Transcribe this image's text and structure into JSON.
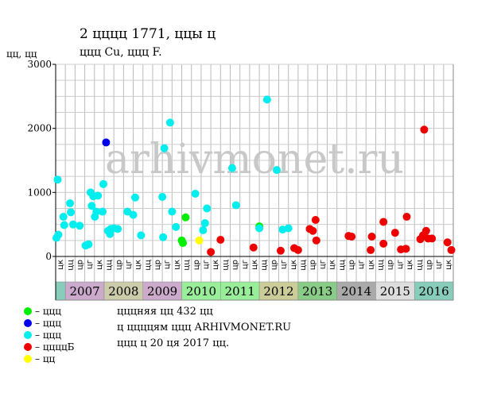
{
  "title": "2  цццц 1771, ццы ц",
  "subtitle": "ццц Cu, ццц F.",
  "y_axis_label": "цц, цц",
  "watermark": "ARHIVMONET.RU",
  "legend": [
    {
      "label": "– ццц",
      "color": "#00ee00"
    },
    {
      "label": "– ццц",
      "color": "#0000ee"
    },
    {
      "label": "– ццц",
      "color": "#00eeee"
    },
    {
      "label": "– ццццБ",
      "color": "#ee0000"
    },
    {
      "label": "– цц",
      "color": "#ffff00"
    }
  ],
  "notes": [
    "цццняя цц 432 цц",
    "ц ццццям ццц ARHIVMONET.RU",
    "ццц ц 20 ця 2017 цц."
  ],
  "chart_data": {
    "type": "scatter",
    "xlabel": "",
    "ylabel": "цц, цц",
    "ylim": [
      0,
      3000
    ],
    "yticks": [
      0,
      1000,
      2000,
      3000
    ],
    "grid": true,
    "years": [
      "2007",
      "2008",
      "2009",
      "2010",
      "2011",
      "2012",
      "2013",
      "2014",
      "2015",
      "2016"
    ],
    "year_colors": [
      "#ccaacc",
      "#ccccaa",
      "#ccaacc",
      "#99ee99",
      "#99ee99",
      "#cccc99",
      "#88cc88",
      "#aaaaaa",
      "#dddddd",
      "#88ccbb"
    ],
    "quarter_labels": [
      "цц",
      "цр",
      "цг",
      "цк"
    ],
    "x_start": 2006.75,
    "x_end": 2017.0,
    "series": [
      {
        "name": "– ццц",
        "color": "#00ee00",
        "points": [
          {
            "x": 2010.0,
            "y": 250
          },
          {
            "x": 2010.03,
            "y": 210
          },
          {
            "x": 2010.1,
            "y": 610
          },
          {
            "x": 2012.0,
            "y": 470
          }
        ]
      },
      {
        "name": "– ццц",
        "color": "#0000ee",
        "points": [
          {
            "x": 2008.05,
            "y": 1780
          }
        ]
      },
      {
        "name": "– ццц",
        "color": "#00eeee",
        "points": [
          {
            "x": 2006.77,
            "y": 290
          },
          {
            "x": 2006.82,
            "y": 340
          },
          {
            "x": 2006.8,
            "y": 1200
          },
          {
            "x": 2006.95,
            "y": 620
          },
          {
            "x": 2006.97,
            "y": 490
          },
          {
            "x": 2007.12,
            "y": 830
          },
          {
            "x": 2007.14,
            "y": 690
          },
          {
            "x": 2007.2,
            "y": 500
          },
          {
            "x": 2007.37,
            "y": 480
          },
          {
            "x": 2007.52,
            "y": 170
          },
          {
            "x": 2007.6,
            "y": 190
          },
          {
            "x": 2007.65,
            "y": 1000
          },
          {
            "x": 2007.68,
            "y": 790
          },
          {
            "x": 2007.72,
            "y": 940
          },
          {
            "x": 2007.76,
            "y": 620
          },
          {
            "x": 2007.8,
            "y": 700
          },
          {
            "x": 2007.84,
            "y": 950
          },
          {
            "x": 2007.98,
            "y": 1130
          },
          {
            "x": 2008.1,
            "y": 400
          },
          {
            "x": 2007.96,
            "y": 700
          },
          {
            "x": 2008.15,
            "y": 350
          },
          {
            "x": 2008.17,
            "y": 430
          },
          {
            "x": 2008.25,
            "y": 440
          },
          {
            "x": 2008.35,
            "y": 430
          },
          {
            "x": 2008.6,
            "y": 700
          },
          {
            "x": 2008.75,
            "y": 650
          },
          {
            "x": 2008.8,
            "y": 920
          },
          {
            "x": 2008.95,
            "y": 330
          },
          {
            "x": 2009.5,
            "y": 930
          },
          {
            "x": 2009.55,
            "y": 1690
          },
          {
            "x": 2009.52,
            "y": 300
          },
          {
            "x": 2009.7,
            "y": 2090
          },
          {
            "x": 2009.75,
            "y": 700
          },
          {
            "x": 2009.85,
            "y": 460
          },
          {
            "x": 2010.35,
            "y": 980
          },
          {
            "x": 2010.55,
            "y": 410
          },
          {
            "x": 2010.6,
            "y": 520
          },
          {
            "x": 2010.65,
            "y": 750
          },
          {
            "x": 2011.3,
            "y": 1380
          },
          {
            "x": 2011.4,
            "y": 800
          },
          {
            "x": 2012.0,
            "y": 440
          },
          {
            "x": 2012.2,
            "y": 2450
          },
          {
            "x": 2012.45,
            "y": 1350
          },
          {
            "x": 2012.6,
            "y": 420
          },
          {
            "x": 2012.75,
            "y": 440
          }
        ]
      },
      {
        "name": "– ццццБ",
        "color": "#ee0000",
        "points": [
          {
            "x": 2010.75,
            "y": 70
          },
          {
            "x": 2011.0,
            "y": 260
          },
          {
            "x": 2011.85,
            "y": 140
          },
          {
            "x": 2012.55,
            "y": 90
          },
          {
            "x": 2012.9,
            "y": 130
          },
          {
            "x": 2013.0,
            "y": 100
          },
          {
            "x": 2013.3,
            "y": 430
          },
          {
            "x": 2013.38,
            "y": 400
          },
          {
            "x": 2013.45,
            "y": 570
          },
          {
            "x": 2013.47,
            "y": 250
          },
          {
            "x": 2014.3,
            "y": 320
          },
          {
            "x": 2014.38,
            "y": 310
          },
          {
            "x": 2014.87,
            "y": 100
          },
          {
            "x": 2014.9,
            "y": 310
          },
          {
            "x": 2015.2,
            "y": 540
          },
          {
            "x": 2015.2,
            "y": 200
          },
          {
            "x": 2015.5,
            "y": 370
          },
          {
            "x": 2015.65,
            "y": 110
          },
          {
            "x": 2015.8,
            "y": 620
          },
          {
            "x": 2015.78,
            "y": 120
          },
          {
            "x": 2016.15,
            "y": 270
          },
          {
            "x": 2016.22,
            "y": 330
          },
          {
            "x": 2016.25,
            "y": 1980
          },
          {
            "x": 2016.3,
            "y": 400
          },
          {
            "x": 2016.35,
            "y": 280
          },
          {
            "x": 2016.45,
            "y": 280
          },
          {
            "x": 2016.85,
            "y": 220
          },
          {
            "x": 2016.95,
            "y": 100
          }
        ]
      },
      {
        "name": "– цц",
        "color": "#ffff00",
        "points": [
          {
            "x": 2010.45,
            "y": 250
          }
        ]
      }
    ]
  }
}
